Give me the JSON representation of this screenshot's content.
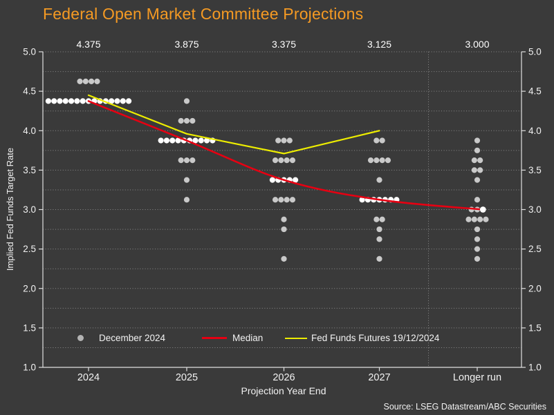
{
  "title": "Federal Open Market Committee Projections",
  "source": "Source: LSEG Datastream/ABC Securities",
  "colors": {
    "background": "#3a3a3a",
    "title": "#f59a23",
    "text": "#f2f2f2",
    "grid": "#989898",
    "axis": "#e0e0e0",
    "dot_gray": "#c9c9c9",
    "dot_white": "#ffffff",
    "median_red": "#e60012",
    "futures_yellow": "#eded00"
  },
  "chart_data": {
    "type": "scatter",
    "subtype": "fomc-dot-plot",
    "title": "Federal Open Market Committee Projections",
    "xlabel": "Projection Year End",
    "ylabel": "Implied Fed Funds Target Rate",
    "ylim": [
      1.0,
      5.0
    ],
    "y_tick_step": 0.5,
    "y_minor_grid_step": 0.25,
    "grid": "dotted horizontal every 0.25, axis labels both sides",
    "y_ticks": [
      "5.0",
      "4.5",
      "4.0",
      "3.5",
      "3.0",
      "2.5",
      "2.0",
      "1.5",
      "1.0"
    ],
    "categories": [
      "2024",
      "2025",
      "2026",
      "2027",
      "Longer run"
    ],
    "top_labels": [
      "4.375",
      "3.875",
      "3.375",
      "3.125",
      "3.000"
    ],
    "separator_before_category": "Longer run",
    "dots": [
      {
        "category": "2024",
        "points": [
          {
            "value": 4.625,
            "count": 4
          },
          {
            "value": 4.375,
            "count": 15,
            "white": true
          }
        ]
      },
      {
        "category": "2025",
        "points": [
          {
            "value": 4.375,
            "count": 1
          },
          {
            "value": 4.125,
            "count": 3
          },
          {
            "value": 3.875,
            "count": 10,
            "white": true
          },
          {
            "value": 3.625,
            "count": 3
          },
          {
            "value": 3.375,
            "count": 1
          },
          {
            "value": 3.125,
            "count": 1
          }
        ]
      },
      {
        "category": "2026",
        "points": [
          {
            "value": 3.875,
            "count": 3
          },
          {
            "value": 3.625,
            "count": 4
          },
          {
            "value": 3.375,
            "count": 5,
            "white": true
          },
          {
            "value": 3.125,
            "count": 4
          },
          {
            "value": 2.875,
            "count": 1
          },
          {
            "value": 2.75,
            "count": 1
          },
          {
            "value": 2.375,
            "count": 1
          }
        ]
      },
      {
        "category": "2027",
        "points": [
          {
            "value": 3.875,
            "count": 2
          },
          {
            "value": 3.625,
            "count": 4
          },
          {
            "value": 3.375,
            "count": 1
          },
          {
            "value": 3.125,
            "count": 7,
            "white": true
          },
          {
            "value": 2.875,
            "count": 2
          },
          {
            "value": 2.75,
            "count": 1
          },
          {
            "value": 2.625,
            "count": 1
          },
          {
            "value": 2.375,
            "count": 1
          }
        ]
      },
      {
        "category": "Longer run",
        "points": [
          {
            "value": 3.875,
            "count": 1
          },
          {
            "value": 3.75,
            "count": 1
          },
          {
            "value": 3.625,
            "count": 2
          },
          {
            "value": 3.5,
            "count": 2
          },
          {
            "value": 3.375,
            "count": 1
          },
          {
            "value": 3.125,
            "count": 1
          },
          {
            "value": 3.0,
            "count": 3
          },
          {
            "value": 2.875,
            "count": 4
          },
          {
            "value": 2.75,
            "count": 1
          },
          {
            "value": 2.625,
            "count": 1
          },
          {
            "value": 2.5,
            "count": 1
          },
          {
            "value": 2.375,
            "count": 1
          }
        ]
      }
    ],
    "series": [
      {
        "name": "Median",
        "color": "#e60012",
        "style": "smooth",
        "x": [
          "2024",
          "2025",
          "2026",
          "2027",
          "Longer run"
        ],
        "values": [
          4.375,
          3.875,
          3.375,
          3.125,
          3.0
        ],
        "end_marker": "white-dot"
      },
      {
        "name": "Fed Funds Futures 19/12/2024",
        "color": "#eded00",
        "style": "polyline",
        "x": [
          "2024",
          "2025",
          "2026",
          "2027"
        ],
        "values": [
          4.45,
          3.96,
          3.71,
          4.0
        ]
      }
    ],
    "legend": [
      {
        "label": "December 2024",
        "marker": "dot",
        "color": "#b3b3b3"
      },
      {
        "label": "Median",
        "marker": "line",
        "color": "#e60012"
      },
      {
        "label": "Fed Funds Futures 19/12/2024",
        "marker": "line",
        "color": "#eded00"
      }
    ],
    "legend_position": "bottom inside plot"
  }
}
